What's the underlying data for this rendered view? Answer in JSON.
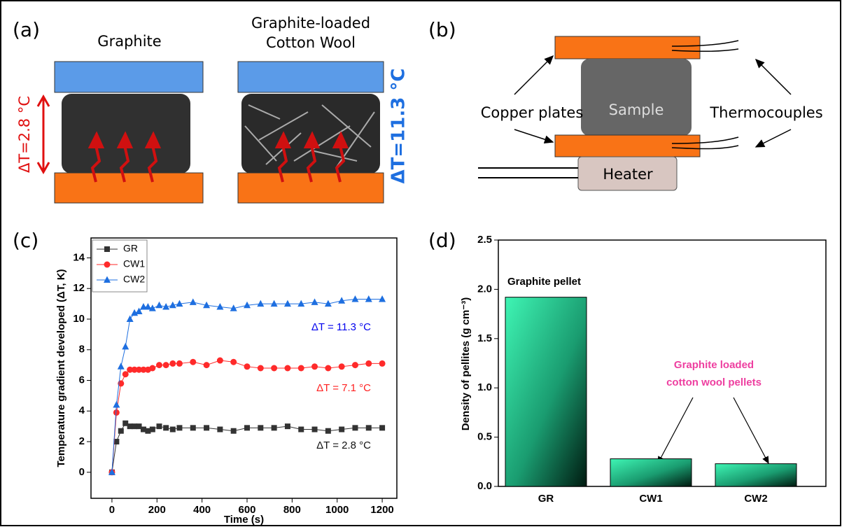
{
  "panel_labels": [
    "(a)",
    "(b)",
    "(c)",
    "(d)"
  ],
  "diagram_a": {
    "left_title": "Graphite",
    "right_title": [
      "Graphite-loaded",
      "Cotton Wool"
    ],
    "left_delta": "ΔT=2.8 °C",
    "right_delta": "ΔT=11.3 °C"
  },
  "diagram_b": {
    "copper": "Copper plates",
    "sample": "Sample",
    "thermocouples": "Thermocouples",
    "heater": "Heater"
  },
  "chart_data": [
    {
      "type": "line",
      "xlabel": "Time (s)",
      "ylabel": "Temperature gradient developed (ΔT, K)",
      "x": [
        0,
        20,
        40,
        60,
        80,
        100,
        120,
        140,
        160,
        180,
        210,
        240,
        270,
        300,
        360,
        420,
        480,
        540,
        600,
        660,
        720,
        780,
        840,
        900,
        960,
        1020,
        1080,
        1140,
        1200
      ],
      "series": [
        {
          "name": "GR",
          "color": "#333333",
          "marker": "square",
          "values": [
            0,
            2.0,
            2.7,
            3.2,
            3.0,
            3.0,
            3.0,
            2.8,
            2.7,
            2.8,
            3.0,
            2.9,
            2.8,
            2.9,
            2.9,
            2.9,
            2.8,
            2.7,
            2.9,
            2.9,
            2.9,
            3.0,
            2.8,
            2.8,
            2.7,
            2.8,
            2.9,
            2.9,
            2.9
          ]
        },
        {
          "name": "CW1",
          "color": "#ff2a2a",
          "marker": "circle",
          "values": [
            0,
            3.9,
            5.8,
            6.4,
            6.7,
            6.7,
            6.7,
            6.7,
            6.7,
            6.8,
            7.0,
            7.0,
            7.1,
            7.1,
            7.2,
            7.0,
            7.3,
            7.2,
            6.9,
            6.8,
            6.8,
            6.8,
            6.8,
            6.9,
            6.8,
            6.9,
            7.0,
            7.1,
            7.1
          ]
        },
        {
          "name": "CW2",
          "color": "#1e6fe0",
          "marker": "triangle",
          "values": [
            0,
            4.4,
            6.9,
            8.2,
            10.0,
            10.4,
            10.5,
            10.8,
            10.8,
            10.7,
            10.9,
            10.8,
            10.9,
            11.0,
            11.1,
            10.9,
            10.8,
            10.7,
            10.9,
            11.0,
            11.0,
            11.0,
            11.0,
            11.1,
            11.0,
            11.2,
            11.3,
            11.3,
            11.3
          ]
        }
      ],
      "xlim": [
        -93,
        1265
      ],
      "xticks": [
        0,
        200,
        400,
        600,
        800,
        1000,
        1200
      ],
      "ylim": [
        -1.7,
        15.3
      ],
      "yticks": [
        0,
        2,
        4,
        6,
        8,
        10,
        12,
        14
      ],
      "legend": "upper left",
      "annotations": [
        {
          "text": "ΔT = 11.3 °C",
          "color": "#0000ee"
        },
        {
          "text": "ΔT = 7.1 °C",
          "color": "#ff2020"
        },
        {
          "text": "ΔT = 2.8 °C",
          "color": "#111111"
        }
      ]
    },
    {
      "type": "bar",
      "ylabel": "Density of pellites (g cm⁻³)",
      "categories": [
        "GR",
        "CW1",
        "CW2"
      ],
      "values": [
        1.92,
        0.28,
        0.23
      ],
      "color": "#3ff5b4",
      "ylim": [
        0,
        2.5
      ],
      "yticks": [
        {
          "value": 0,
          "label": "0.0"
        },
        {
          "value": 0.5,
          "label": "0.5"
        },
        {
          "value": 1,
          "label": "1.0"
        },
        {
          "value": 1.5,
          "label": "1.5"
        },
        {
          "value": 2,
          "label": "2.0"
        },
        {
          "value": 2.5,
          "label": "2.5"
        }
      ],
      "annotations": [
        {
          "text": "Graphite pellet",
          "color": "#000000"
        },
        {
          "text": "Graphite loaded",
          "color": "#ee3fa0"
        },
        {
          "text": "cotton wool pellets",
          "color": "#ee3fa0"
        }
      ]
    }
  ]
}
